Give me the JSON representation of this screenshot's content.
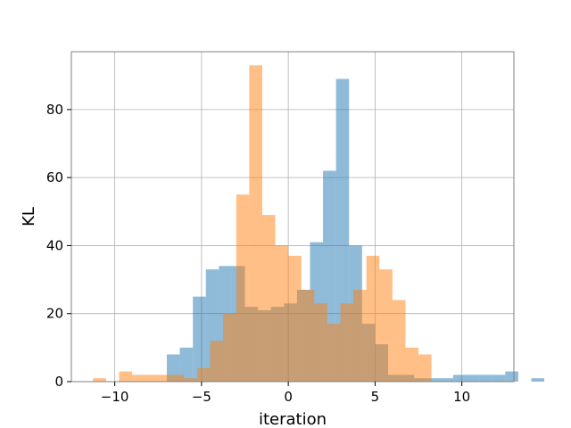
{
  "chart_data": {
    "type": "bar",
    "subtype": "histogram",
    "title": "",
    "xlabel": "iteration",
    "ylabel": "KL",
    "xlim": [
      -12.5,
      13
    ],
    "ylim": [
      0,
      97
    ],
    "grid": true,
    "legend": "none",
    "x_ticks": [
      -10,
      -5,
      0,
      5,
      10
    ],
    "x_tick_labels": [
      "−10",
      "−5",
      "0",
      "5",
      "10"
    ],
    "y_ticks": [
      0,
      20,
      40,
      60,
      80
    ],
    "y_tick_labels": [
      "0",
      "20",
      "40",
      "60",
      "80"
    ],
    "series": [
      {
        "color": "#1f77b4",
        "opacity": 0.5,
        "bin_start": -7,
        "bin_width": 0.75,
        "values": [
          8,
          10,
          25,
          33,
          34,
          34,
          22,
          21,
          22,
          23,
          27,
          41,
          62,
          89,
          40,
          17,
          11,
          2,
          2,
          1,
          1,
          1,
          2,
          2,
          2,
          2,
          3,
          0,
          1
        ]
      },
      {
        "color": "#ff7f0e",
        "opacity": 0.5,
        "bin_start": -11.25,
        "bin_width": 0.75,
        "values": [
          1,
          0,
          3,
          2,
          2,
          2,
          2,
          1,
          4,
          12,
          20,
          55,
          93,
          49,
          40,
          37,
          27,
          23,
          17,
          23,
          27,
          37,
          33,
          24,
          10,
          8
        ]
      }
    ]
  }
}
